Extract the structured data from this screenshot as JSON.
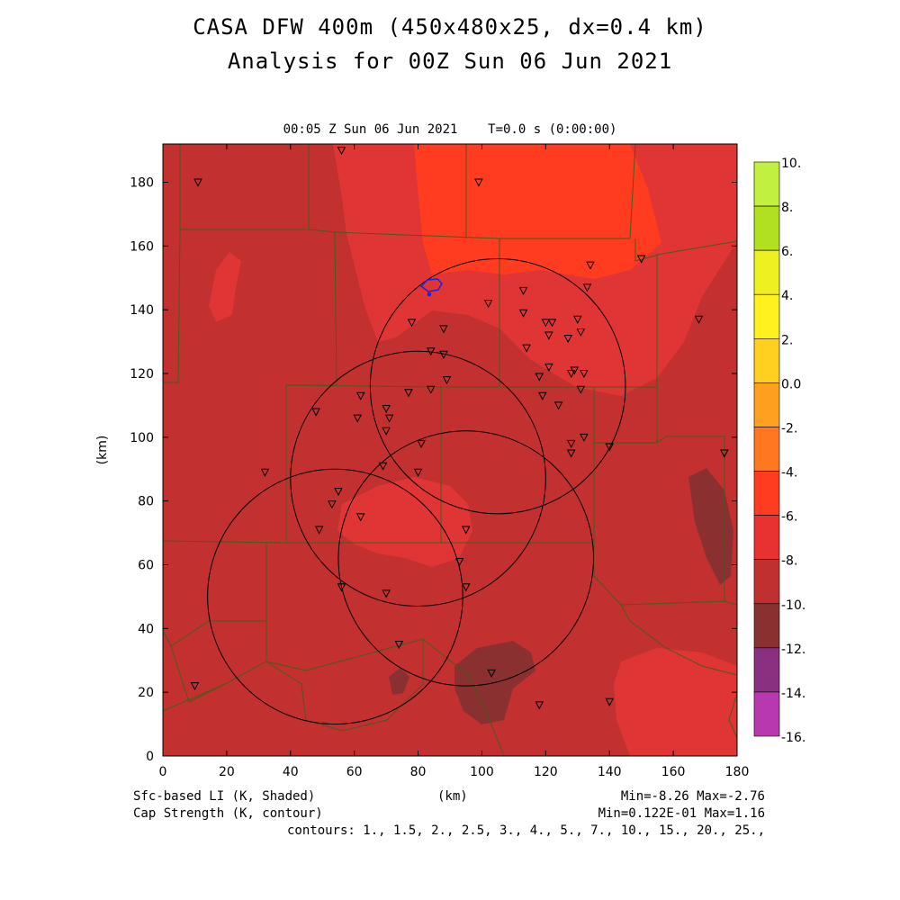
{
  "title": {
    "line1": "CASA DFW 400m (450x480x25, dx=0.4 km)",
    "line2": "Analysis for 00Z Sun 06 Jun 2021"
  },
  "subtitle": "00:05 Z Sun 06 Jun 2021    T=0.0 s (0:00:00)",
  "axes": {
    "x_label": "(km)",
    "y_label": "(km)",
    "x_ticks": [
      "0",
      "20",
      "40",
      "60",
      "80",
      "100",
      "120",
      "140",
      "160",
      "180"
    ],
    "y_ticks": [
      "0",
      "20",
      "40",
      "60",
      "80",
      "100",
      "120",
      "140",
      "160",
      "180"
    ],
    "x_range": [
      0,
      180
    ],
    "y_range": [
      0,
      192
    ]
  },
  "colorbar": {
    "labels": [
      "10.",
      "8.",
      "6.",
      "4.",
      "2.",
      "0.0",
      "-2.",
      "-4.",
      "-6.",
      "-8.",
      "-10.",
      "-12.",
      "-14.",
      "-16."
    ],
    "colors": [
      "#c2f040",
      "#b0e020",
      "#eef020",
      "#fff020",
      "#ffd020",
      "#ffa020",
      "#ff7820",
      "#ff3c20",
      "#e83232",
      "#c03030",
      "#8a3030",
      "#8a3080",
      "#b838b0",
      "#d840d8"
    ]
  },
  "footer": {
    "left1": "Sfc-based LI (K, Shaded)",
    "left2": "Cap Strength (K, contour)",
    "mid": "(km)",
    "right1": "Min=-8.26 Max=-2.76",
    "right2": "Min=0.122E-01 Max=1.16",
    "right3": "contours: 1., 1.5, 2., 2.5, 3., 4., 5., 7., 10., 15., 20., 25.,"
  },
  "map_colors": {
    "base": "#c23030",
    "medium": "#e03535",
    "warm": "#ff3c20",
    "dark": "#8a3030",
    "county_line": "#4a5a1a",
    "contour": "#2020e0"
  },
  "radar_rings_km": [
    {
      "cx": 105,
      "cy": 116,
      "r": 40
    },
    {
      "cx": 80,
      "cy": 87,
      "r": 40
    },
    {
      "cx": 95,
      "cy": 62,
      "r": 40
    },
    {
      "cx": 54,
      "cy": 50,
      "r": 40
    }
  ],
  "station_markers_km": [
    [
      11,
      180
    ],
    [
      56,
      190
    ],
    [
      99,
      180
    ],
    [
      150,
      156
    ],
    [
      134,
      154
    ],
    [
      133,
      147
    ],
    [
      113,
      146
    ],
    [
      102,
      142
    ],
    [
      130,
      137
    ],
    [
      120,
      136
    ],
    [
      122,
      136
    ],
    [
      113,
      139
    ],
    [
      78,
      136
    ],
    [
      88,
      134
    ],
    [
      131,
      133
    ],
    [
      127,
      131
    ],
    [
      121,
      132
    ],
    [
      114,
      128
    ],
    [
      84,
      127
    ],
    [
      88,
      126
    ],
    [
      121,
      122
    ],
    [
      118,
      119
    ],
    [
      128,
      120
    ],
    [
      129,
      121
    ],
    [
      132,
      120
    ],
    [
      89,
      118
    ],
    [
      84,
      115
    ],
    [
      77,
      114
    ],
    [
      131,
      115
    ],
    [
      119,
      113
    ],
    [
      124,
      110
    ],
    [
      62,
      113
    ],
    [
      48,
      108
    ],
    [
      61,
      106
    ],
    [
      70,
      109
    ],
    [
      71,
      106
    ],
    [
      70,
      102
    ],
    [
      81,
      98
    ],
    [
      128,
      98
    ],
    [
      132,
      100
    ],
    [
      140,
      97
    ],
    [
      69,
      91
    ],
    [
      80,
      89
    ],
    [
      128,
      95
    ],
    [
      32,
      89
    ],
    [
      55,
      83
    ],
    [
      53,
      79
    ],
    [
      62,
      75
    ],
    [
      49,
      71
    ],
    [
      95,
      71
    ],
    [
      93,
      61
    ],
    [
      95,
      53
    ],
    [
      56,
      53
    ],
    [
      70,
      51
    ],
    [
      10,
      22
    ],
    [
      74,
      35
    ],
    [
      103,
      26
    ],
    [
      118,
      16
    ],
    [
      140,
      17
    ],
    [
      176,
      95
    ],
    [
      168,
      137
    ]
  ]
}
